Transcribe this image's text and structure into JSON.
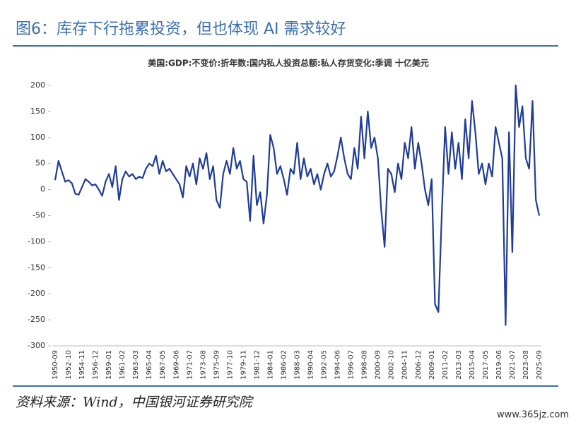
{
  "header": {
    "title": "图6：库存下行拖累投资，但也体现 AI 需求较好"
  },
  "footer": {
    "source": "资料来源：Wind，中国银河证券研究院",
    "watermark": "www.365jz.com"
  },
  "chart_data": {
    "type": "line",
    "title": "美国:GDP:不变价:折年数:国内私人投资总额:私人存货变化:季调 十亿美元",
    "color": "#1f3c99",
    "categories": [
      "1950-09",
      null,
      null,
      null,
      "1952-10",
      null,
      null,
      null,
      "1954-11",
      null,
      null,
      null,
      "1956-12",
      null,
      null,
      null,
      "1959-01",
      null,
      null,
      null,
      "1961-02",
      null,
      null,
      null,
      "1963-03",
      null,
      null,
      null,
      "1965-04",
      null,
      null,
      null,
      "1967-05",
      null,
      null,
      null,
      "1969-06",
      null,
      null,
      null,
      "1971-07",
      null,
      null,
      null,
      "1973-08",
      null,
      null,
      null,
      "1975-09",
      null,
      null,
      null,
      "1977-10",
      null,
      null,
      null,
      "1979-11",
      null,
      null,
      null,
      "1981-12",
      null,
      null,
      null,
      "1984-01",
      null,
      null,
      null,
      "1986-02",
      null,
      null,
      null,
      "1988-03",
      null,
      null,
      null,
      "1990-04",
      null,
      null,
      null,
      "1992-05",
      null,
      null,
      null,
      "1994-06",
      null,
      null,
      null,
      "1996-07",
      null,
      null,
      null,
      "1998-08",
      null,
      null,
      null,
      "2000-09",
      null,
      null,
      null,
      "2002-10",
      null,
      null,
      null,
      "2004-11",
      null,
      null,
      null,
      "2006-12",
      null,
      null,
      null,
      "2009-01",
      null,
      null,
      null,
      "2011-02",
      null,
      null,
      null,
      "2013-03",
      null,
      null,
      null,
      "2015-04",
      null,
      null,
      null,
      "2017-05",
      null,
      null,
      null,
      "2019-06",
      null,
      null,
      null,
      "2021-07",
      null,
      null,
      null,
      "2023-08",
      null,
      null,
      null,
      "2025-09"
    ],
    "values": [
      18,
      55,
      35,
      15,
      18,
      12,
      -8,
      -10,
      5,
      20,
      15,
      8,
      10,
      0,
      -12,
      15,
      30,
      5,
      45,
      -20,
      20,
      35,
      25,
      30,
      20,
      25,
      22,
      40,
      50,
      45,
      65,
      30,
      55,
      35,
      40,
      30,
      20,
      10,
      -15,
      45,
      25,
      50,
      10,
      60,
      40,
      70,
      20,
      45,
      -20,
      -35,
      30,
      55,
      30,
      80,
      40,
      55,
      20,
      15,
      -60,
      65,
      -30,
      -5,
      -65,
      -10,
      105,
      80,
      30,
      45,
      20,
      -10,
      40,
      30,
      90,
      20,
      60,
      25,
      40,
      10,
      30,
      0,
      30,
      50,
      25,
      35,
      65,
      100,
      60,
      30,
      20,
      80,
      40,
      140,
      60,
      150,
      80,
      100,
      60,
      -40,
      -110,
      40,
      30,
      -5,
      50,
      20,
      90,
      60,
      120,
      40,
      90,
      50,
      0,
      -30,
      20,
      -220,
      -235,
      -50,
      120,
      30,
      110,
      40,
      90,
      20,
      135,
      60,
      170,
      110,
      30,
      50,
      10,
      50,
      25,
      120,
      90,
      60,
      -260,
      110,
      -120,
      200,
      120,
      160,
      60,
      40,
      170,
      -20,
      -50
    ],
    "ylim": [
      -300,
      200
    ],
    "yticks": [
      200,
      150,
      100,
      50,
      0,
      -50,
      -100,
      -150,
      -200,
      -250,
      -300
    ]
  }
}
